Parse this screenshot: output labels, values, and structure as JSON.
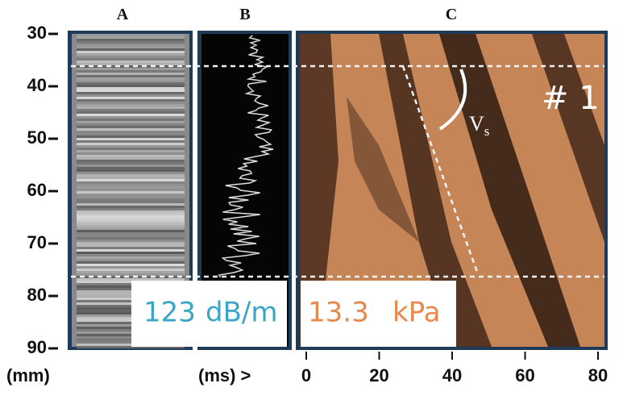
{
  "panels": [
    {
      "label": "A"
    },
    {
      "label": "B"
    },
    {
      "label": "C"
    }
  ],
  "y_axis": {
    "label": "(mm)",
    "ticks": [
      30,
      40,
      50,
      60,
      70,
      80,
      90
    ]
  },
  "x_axis": {
    "label": "(ms) >",
    "ticks": [
      0,
      20,
      40,
      60,
      80
    ]
  },
  "readouts": [
    {
      "value": 123,
      "unit": "dB/m"
    },
    {
      "value": 13.3,
      "unit": "kPa"
    }
  ],
  "annotations": {
    "case": "# 1",
    "wave_label": "V",
    "wave_subscript": "s"
  }
}
